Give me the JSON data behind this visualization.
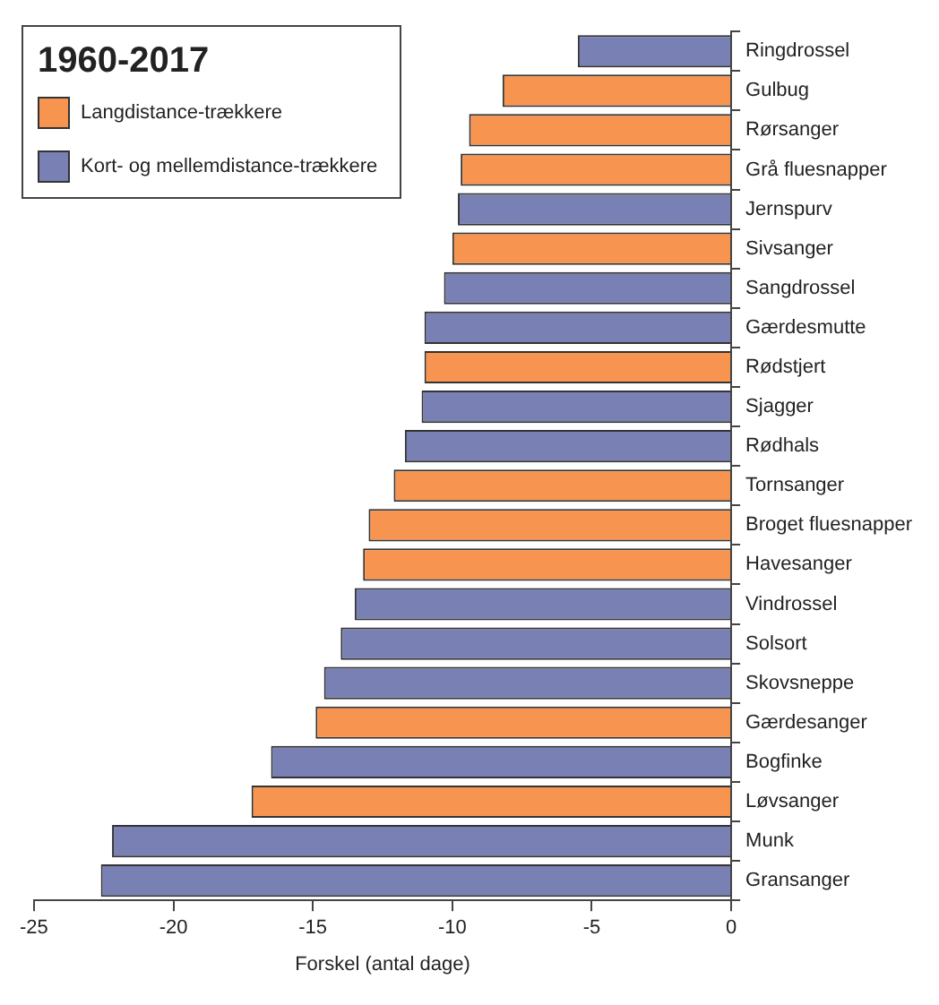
{
  "chart_data": {
    "type": "bar",
    "orientation": "horizontal",
    "legend_title": "1960-2017",
    "xlabel": "Forskel (antal dage)",
    "categories": [
      "Ringdrossel",
      "Gulbug",
      "Rørsanger",
      "Grå fluesnapper",
      "Jernspurv",
      "Sivsanger",
      "Sangdrossel",
      "Gærdesmutte",
      "Rødstjert",
      "Sjagger",
      "Rødhals",
      "Tornsanger",
      "Broget fluesnapper",
      "Havesanger",
      "Vindrossel",
      "Solsort",
      "Skovsneppe",
      "Gærdesanger",
      "Bogfinke",
      "Løvsanger",
      "Munk",
      "Gransanger"
    ],
    "series": [
      {
        "name": "Langdistance-trækkere",
        "color": "#f79550",
        "values": [
          null,
          -8.2,
          -9.4,
          -9.7,
          null,
          -10.0,
          null,
          null,
          -11.0,
          null,
          null,
          -12.1,
          -13.0,
          -13.2,
          null,
          null,
          null,
          -14.9,
          null,
          -17.2,
          null,
          null
        ]
      },
      {
        "name": "Kort- og mellemdistance-trækkere",
        "color": "#7880b4",
        "values": [
          -5.5,
          null,
          null,
          null,
          -9.8,
          null,
          -10.3,
          -11.0,
          null,
          -11.1,
          -11.7,
          null,
          null,
          null,
          -13.5,
          -14.0,
          -14.6,
          null,
          -16.5,
          null,
          -22.2,
          -22.6
        ]
      }
    ],
    "xlim": [
      -25,
      0
    ],
    "xticks": [
      -25,
      -20,
      -15,
      -10,
      -5,
      0
    ],
    "grid": false,
    "legend": "top left"
  }
}
